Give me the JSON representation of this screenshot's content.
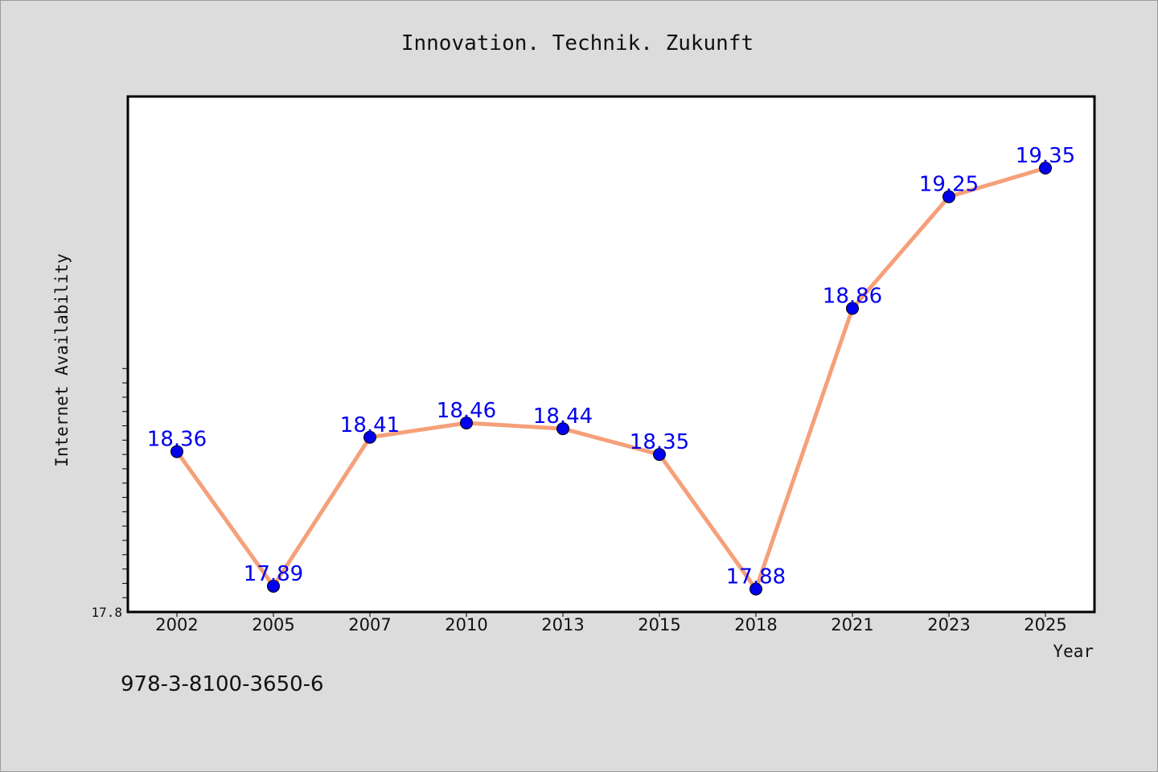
{
  "chart_data": {
    "type": "line",
    "title": "Innovation. Technik. Zukunft",
    "xlabel": "Year",
    "ylabel": "Internet Availability",
    "categories": [
      "2002",
      "2005",
      "2007",
      "2010",
      "2013",
      "2015",
      "2018",
      "2021",
      "2023",
      "2025"
    ],
    "series": [
      {
        "values": [
          18.36,
          17.89,
          18.41,
          18.46,
          18.44,
          18.35,
          17.88,
          18.86,
          19.25,
          19.35
        ]
      }
    ],
    "data_labels": [
      "18.36",
      "17.89",
      "18.41",
      "18.46",
      "18.44",
      "18.35",
      "17.88",
      "18.86",
      "19.25",
      "19.35"
    ],
    "y_tick_labels": [
      "17.8"
    ],
    "ylim": [
      17.8,
      19.6
    ],
    "grid": false,
    "line_color": "#f5a07a",
    "marker_color": "#0000ee",
    "label_color": "#0000ee"
  },
  "footer": {
    "isbn": "978-3-8100-3650-6"
  }
}
